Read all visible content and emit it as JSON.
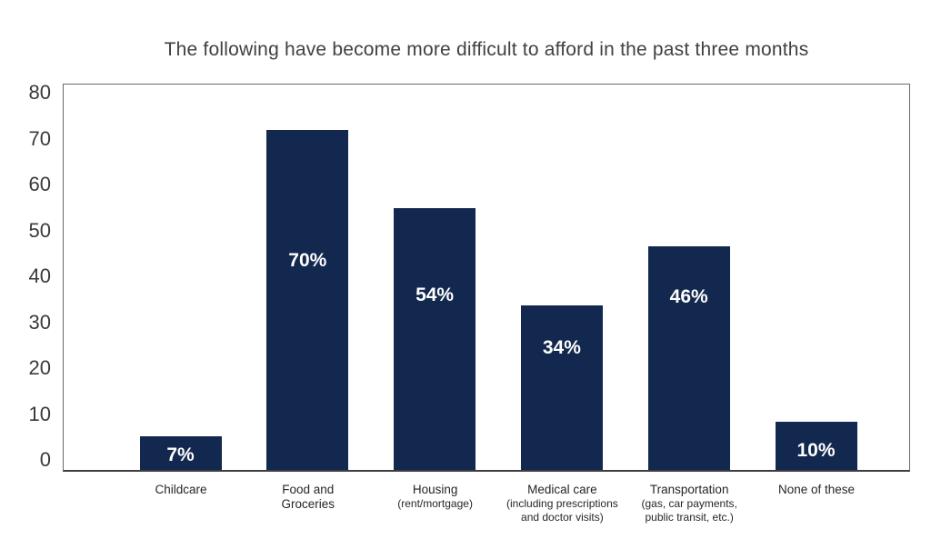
{
  "chart_data": {
    "type": "bar",
    "title": "The following have become more difficult to afford in the past three months",
    "categories": [
      {
        "name_lines": [
          "Childcare"
        ],
        "detail_lines": []
      },
      {
        "name_lines": [
          "Food and",
          "Groceries"
        ],
        "detail_lines": []
      },
      {
        "name_lines": [
          "Housing"
        ],
        "detail_lines": [
          "(rent/mortgage)"
        ]
      },
      {
        "name_lines": [
          "Medical care"
        ],
        "detail_lines": [
          "(including prescriptions",
          "and doctor visits)"
        ]
      },
      {
        "name_lines": [
          "Transportation"
        ],
        "detail_lines": [
          "(gas, car payments,",
          "public transit, etc.)"
        ]
      },
      {
        "name_lines": [
          "None of these"
        ],
        "detail_lines": []
      }
    ],
    "values": [
      7,
      70,
      54,
      34,
      46,
      10
    ],
    "value_labels": [
      "7%",
      "70%",
      "54%",
      "34%",
      "46%",
      "10%"
    ],
    "xlabel": "",
    "ylabel": "",
    "ylim": [
      0,
      80
    ],
    "yticks": [
      0,
      10,
      20,
      30,
      40,
      50,
      60,
      70,
      80
    ],
    "grid": "off",
    "legend": "none",
    "colors": {
      "bar": "#13284E",
      "value_label": "#FFFFFF",
      "title": "#414042",
      "y_tick": "#3A3A3C",
      "category_label": "#262626",
      "plot_border": "#6A6A6C",
      "axis_line": "#3E3E40",
      "background": "#FFFFFF"
    },
    "layout": {
      "value_label_fracs": [
        0.57,
        0.385,
        0.335,
        0.26,
        0.225,
        0.6
      ],
      "legend_position": "none"
    }
  }
}
